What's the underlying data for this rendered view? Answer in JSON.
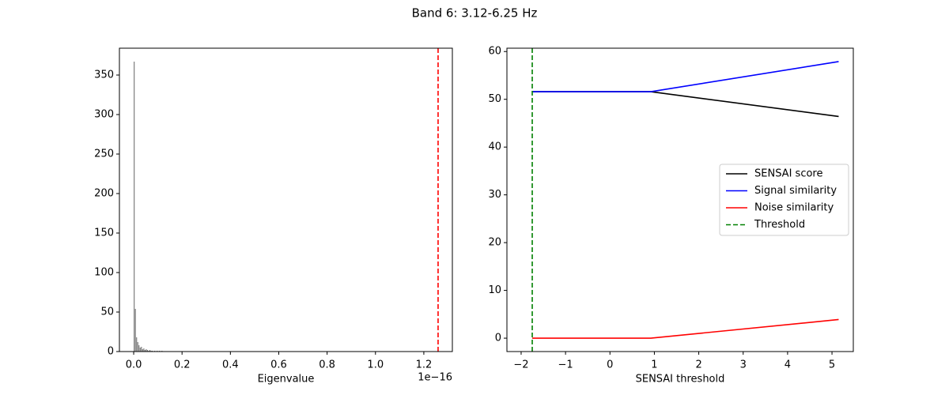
{
  "title": "Band 6: 3.12-6.25 Hz",
  "chart_data": [
    {
      "type": "histogram",
      "xlabel": "Eigenvalue",
      "x_offset_label": "1e−16",
      "bins": [
        0,
        0.005,
        0.01,
        0.015,
        0.02,
        0.025,
        0.03,
        0.035,
        0.04,
        0.045,
        0.05,
        0.055,
        0.06,
        0.065,
        0.07,
        0.075,
        0.08,
        0.085,
        0.09,
        0.095,
        0.1,
        0.105,
        0.11,
        0.115,
        0.12
      ],
      "values": [
        367,
        54,
        18,
        12,
        8,
        5,
        6,
        3,
        4,
        2,
        3,
        2,
        1,
        2,
        1,
        1,
        0,
        1,
        0,
        1,
        0,
        1,
        0,
        1
      ],
      "color": "#808080",
      "vline": {
        "x": 1.259,
        "color": "#ff0000",
        "dashed": true
      },
      "xlim": [
        -0.059,
        1.318
      ],
      "xticks": [
        {
          "value": 0,
          "label": "0.0"
        },
        0.2,
        0.4,
        0.6,
        0.8,
        {
          "value": 1,
          "label": "1.0"
        },
        1.2
      ],
      "ylim": [
        0,
        384
      ],
      "yticks": [
        0,
        50,
        100,
        150,
        200,
        250,
        300,
        350
      ]
    },
    {
      "type": "line",
      "xlabel": "SENSAI threshold",
      "x": [
        -1.75,
        0.92,
        5.15
      ],
      "series": [
        {
          "name": "SENSAI score",
          "color": "#000000",
          "values": [
            51.6,
            51.6,
            46.4
          ]
        },
        {
          "name": "Signal similarity",
          "color": "#0000ff",
          "values": [
            51.6,
            51.6,
            57.9
          ]
        },
        {
          "name": "Noise similarity",
          "color": "#ff0000",
          "values": [
            0,
            0,
            3.9
          ]
        }
      ],
      "vline": {
        "name": "Threshold",
        "x": -1.75,
        "color": "#008000",
        "dashed": true
      },
      "legend": "center right",
      "xlim": [
        -2.32,
        5.48
      ],
      "xticks": [
        {
          "value": -2,
          "label": "−2"
        },
        {
          "value": -1,
          "label": "−1"
        },
        0,
        1,
        2,
        3,
        4,
        5
      ],
      "ylim": [
        -2.8,
        60.7
      ],
      "yticks": [
        0,
        10,
        20,
        30,
        40,
        50,
        60
      ]
    }
  ]
}
